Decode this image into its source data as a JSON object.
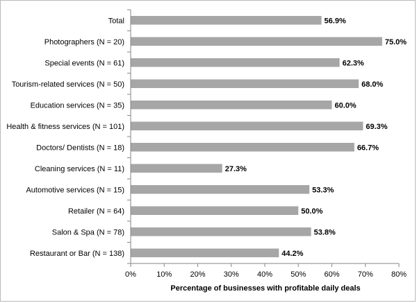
{
  "chart_data": {
    "type": "bar",
    "orientation": "horizontal",
    "categories": [
      "Total",
      "Photographers (N = 20)",
      "Special events (N = 61)",
      "Tourism-related services (N = 50)",
      "Education services (N = 35)",
      "Health & fitness services (N = 101)",
      "Doctors/ Dentists (N = 18)",
      "Cleaning services (N = 11)",
      "Automotive services (N = 15)",
      "Retailer (N = 64)",
      "Salon & Spa (N = 78)",
      "Restaurant or Bar (N = 138)"
    ],
    "values": [
      56.9,
      75.0,
      62.3,
      68.0,
      60.0,
      69.3,
      66.7,
      27.3,
      53.3,
      50.0,
      53.8,
      44.2
    ],
    "data_labels": [
      "56.9%",
      "75.0%",
      "62.3%",
      "68.0%",
      "60.0%",
      "69.3%",
      "66.7%",
      "27.3%",
      "53.3%",
      "50.0%",
      "53.8%",
      "44.2%"
    ],
    "xlabel": "Percentage of businesses with profitable daily deals",
    "ylabel": "",
    "xlim": [
      0,
      80
    ],
    "xticks": [
      0,
      10,
      20,
      30,
      40,
      50,
      60,
      70,
      80
    ],
    "xtick_labels": [
      "0%",
      "10%",
      "20%",
      "30%",
      "40%",
      "50%",
      "60%",
      "70%",
      "80%"
    ],
    "grid": false,
    "legend": "none",
    "bar_color": "#a6a6a6",
    "axis_color": "#868686"
  }
}
